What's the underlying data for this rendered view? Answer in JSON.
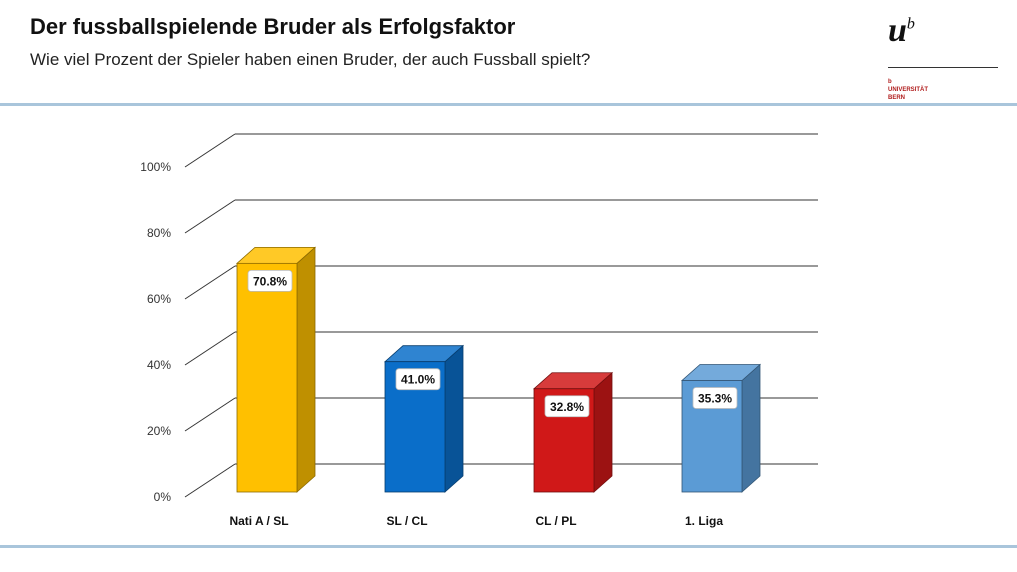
{
  "header": {
    "title": "Der fussballspielende Bruder als Erfolgsfaktor",
    "subtitle": "Wie viel Prozent der Spieler haben einen Bruder, der auch Fussball spielt?"
  },
  "logo": {
    "mark": "u",
    "superscript": "b",
    "small_mark": "b",
    "university": "UNIVERSITÄT",
    "city": "BERN"
  },
  "chart_data": {
    "type": "bar",
    "style": "3d",
    "categories": [
      "Nati A / SL",
      "SL / CL",
      "CL / PL",
      "1. Liga"
    ],
    "values": [
      70.8,
      41.0,
      32.8,
      35.3
    ],
    "data_labels": [
      "70.8%",
      "41.0%",
      "32.8%",
      "35.3%"
    ],
    "colors": [
      "#ffc000",
      "#0a6ec9",
      "#d01818",
      "#5b9bd5"
    ],
    "ylim": [
      0,
      100
    ],
    "yticks": [
      0,
      20,
      40,
      60,
      80,
      100
    ],
    "ytick_labels": [
      "0%",
      "20%",
      "40%",
      "60%",
      "80%",
      "100%"
    ],
    "title": "",
    "xlabel": "",
    "ylabel": "",
    "grid": true,
    "legend": "none"
  }
}
